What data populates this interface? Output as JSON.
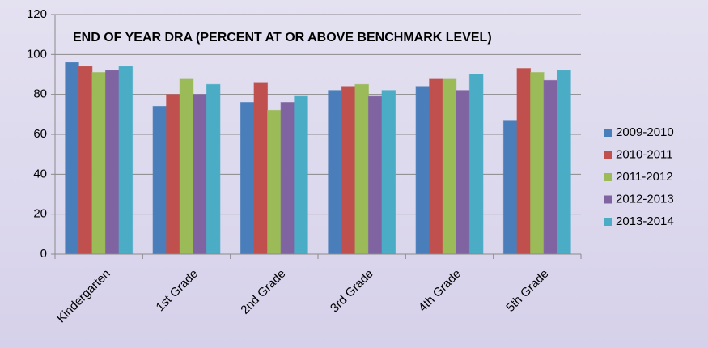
{
  "chart_data": {
    "type": "bar",
    "title": "END OF YEAR DRA  (PERCENT AT OR ABOVE BENCHMARK LEVEL)",
    "categories": [
      "Kindergarten",
      "1st Grade",
      "2nd Grade",
      "3rd Grade",
      "4th Grade",
      "5th Grade"
    ],
    "series": [
      {
        "name": "2009-2010",
        "color": "#4a7ebb",
        "values": [
          96,
          74,
          76,
          82,
          84,
          67
        ]
      },
      {
        "name": "2010-2011",
        "color": "#c0504d",
        "values": [
          94,
          80,
          86,
          84,
          88,
          93
        ]
      },
      {
        "name": "2011-2012",
        "color": "#9bbb59",
        "values": [
          91,
          88,
          72,
          85,
          88,
          91
        ]
      },
      {
        "name": "2012-2013",
        "color": "#8064a2",
        "values": [
          92,
          80,
          76,
          79,
          82,
          87
        ]
      },
      {
        "name": "2013-2014",
        "color": "#4bacc6",
        "values": [
          94,
          85,
          79,
          82,
          90,
          92
        ]
      }
    ],
    "ylim": [
      0,
      120
    ],
    "yticks": [
      0,
      20,
      40,
      60,
      80,
      100,
      120
    ],
    "grid": true,
    "legend": "right"
  }
}
